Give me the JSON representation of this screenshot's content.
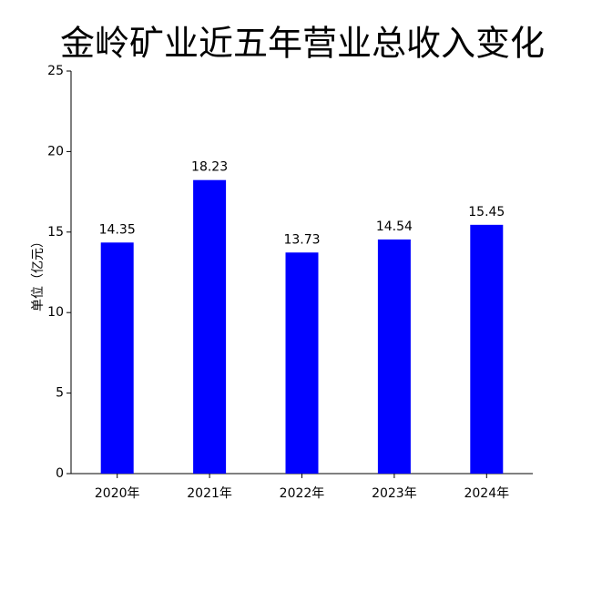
{
  "chart_data": {
    "type": "bar",
    "title": "金岭矿业近五年营业总收入变化",
    "ylabel": "单位（亿元）",
    "categories": [
      "2020年",
      "2021年",
      "2022年",
      "2023年",
      "2024年"
    ],
    "values": [
      14.35,
      18.23,
      13.73,
      14.54,
      15.45
    ],
    "color": "#0000ff",
    "ylim": [
      0,
      25
    ],
    "yticks": [
      0,
      5,
      10,
      15,
      20,
      25
    ],
    "grid": false
  }
}
